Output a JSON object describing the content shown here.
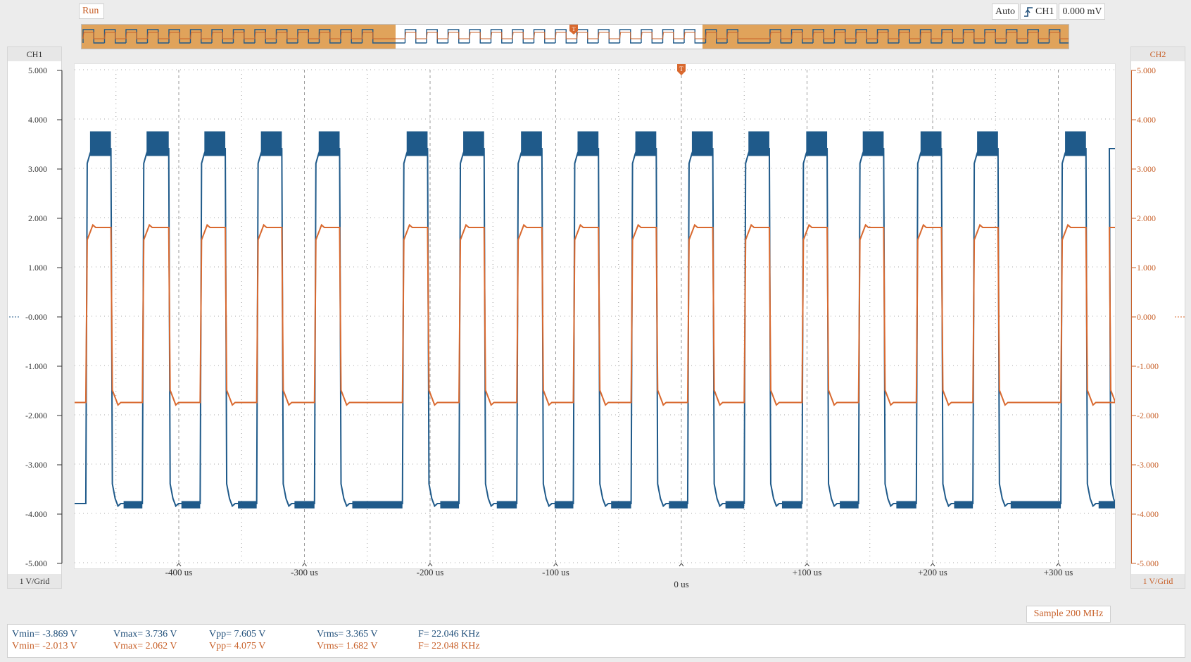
{
  "status": {
    "run_label": "Run"
  },
  "trigger": {
    "mode": "Auto",
    "edge_icon": "rising-edge-icon",
    "source": "CH1",
    "level": "0.000 mV"
  },
  "channels": {
    "ch1": {
      "title": "CH1",
      "scale": "1 V/Grid",
      "color": "#1f5a8a"
    },
    "ch2": {
      "title": "CH2",
      "scale": "1 V/Grid",
      "color": "#d9692f"
    }
  },
  "axis": {
    "y_ticks_ch1": [
      "5.000",
      "4.000",
      "3.000",
      "2.000",
      "1.000",
      "-0.000",
      "-1.000",
      "-2.000",
      "-3.000",
      "-4.000",
      "-5.000"
    ],
    "y_ticks_ch2": [
      "5.000",
      "4.000",
      "3.000",
      "2.000",
      "1.000",
      "0.000",
      "-1.000",
      "-2.000",
      "-3.000",
      "-4.000",
      "-5.000"
    ],
    "x_ticks": [
      "-400 us",
      "-300 us",
      "-200 us",
      "-100 us",
      "0 us",
      "+100 us",
      "+200 us",
      "+300 us"
    ]
  },
  "sample_rate": "Sample 200 MHz",
  "measurements": {
    "ch1": {
      "vmin": "Vmin= -3.869 V",
      "vmax": "Vmax= 3.736 V",
      "vpp": "Vpp= 7.605 V",
      "vrms": "Vrms= 3.365 V",
      "freq": "F= 22.046 KHz"
    },
    "ch2": {
      "vmin": "Vmin= -2.013 V",
      "vmax": "Vmax= 2.062 V",
      "vpp": "Vpp= 4.075 V",
      "vrms": "Vrms= 1.682 V",
      "freq": "F= 22.048 KHz"
    }
  },
  "chart_data": {
    "type": "line",
    "title": "",
    "xlabel": "",
    "ylabel": "",
    "xlim_us": [
      -500,
      350
    ],
    "ylim": [
      -5,
      5
    ],
    "grid": true,
    "pulses_us": [
      [
        -474,
        -454
      ],
      [
        -429,
        -408
      ],
      [
        -383,
        -363
      ],
      [
        -338,
        -318
      ],
      [
        -292,
        -272
      ],
      [
        -222,
        -202
      ],
      [
        -177,
        -157
      ],
      [
        -131,
        -111
      ],
      [
        -86,
        -66
      ],
      [
        -40,
        -20
      ],
      [
        5,
        25
      ],
      [
        50,
        70
      ],
      [
        96,
        116
      ],
      [
        141,
        161
      ],
      [
        187,
        207
      ],
      [
        232,
        252
      ],
      [
        302,
        322
      ],
      [
        347,
        352
      ]
    ],
    "series": [
      {
        "name": "CH1",
        "high_v": 3.4,
        "low_v": -3.8
      },
      {
        "name": "CH2",
        "high_v": 1.8,
        "low_v": -1.75
      }
    ]
  }
}
